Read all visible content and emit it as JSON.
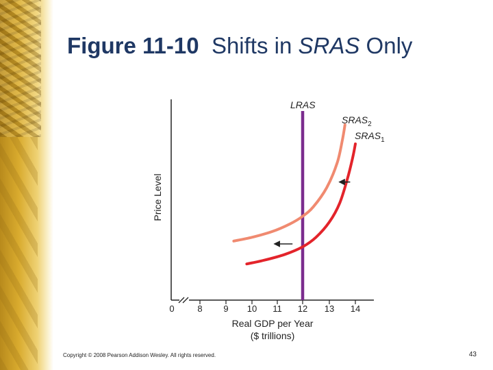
{
  "slide": {
    "title_bold": "Figure 11-10",
    "title_normal_a": "Shifts in ",
    "title_italic": "SRAS",
    "title_normal_b": " Only",
    "copyright": "Copyright © 2008 Pearson Addison Wesley. All rights reserved.",
    "page_number": "43"
  },
  "chart_data": {
    "type": "line",
    "ylabel": "Price Level",
    "xlabel_line1": "Real GDP per Year",
    "xlabel_line2": "($ trillions)",
    "x_ticks": [
      "0",
      "8",
      "9",
      "10",
      "11",
      "12",
      "13",
      "14"
    ],
    "x_tick_values": [
      7,
      8,
      9,
      10,
      11,
      12,
      13,
      14
    ],
    "axis_break_after_origin": true,
    "x_range": [
      7,
      14
    ],
    "y_range": [
      0,
      1
    ],
    "series": [
      {
        "name": "LRAS",
        "color": "#7b2d8e",
        "x": [
          12,
          12
        ],
        "y": [
          0,
          1
        ]
      },
      {
        "name": "SRAS2",
        "label_main": "SRAS",
        "label_sub": "2",
        "color": "#f08a70",
        "x": [
          9.3,
          10.0,
          10.8,
          11.5,
          12.0,
          12.4,
          12.9,
          13.3,
          13.5,
          13.6
        ],
        "y": [
          0.31,
          0.33,
          0.36,
          0.4,
          0.44,
          0.49,
          0.59,
          0.72,
          0.84,
          0.92
        ]
      },
      {
        "name": "SRAS1",
        "label_main": "SRAS",
        "label_sub": "1",
        "color": "#e3242b",
        "x": [
          9.8,
          10.5,
          11.3,
          12.0,
          12.5,
          13.0,
          13.4,
          13.7,
          13.9,
          14.0
        ],
        "y": [
          0.19,
          0.21,
          0.24,
          0.28,
          0.33,
          0.41,
          0.51,
          0.64,
          0.75,
          0.82
        ]
      }
    ],
    "arrows": [
      {
        "direction": "left",
        "from": [
          11.6,
          0.295
        ],
        "to": [
          10.9,
          0.295
        ]
      },
      {
        "direction": "left",
        "from": [
          13.8,
          0.62
        ],
        "to": [
          13.4,
          0.62
        ]
      }
    ],
    "grid": false,
    "legend": "none"
  }
}
